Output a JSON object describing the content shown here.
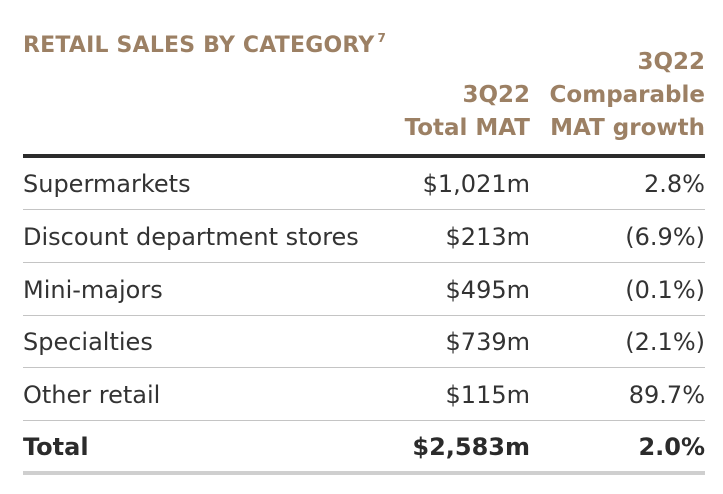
{
  "title": {
    "text": "RETAIL SALES BY CATEGORY",
    "footnote": "7"
  },
  "columns": {
    "total_mat": [
      "3Q22",
      "Total MAT"
    ],
    "growth": [
      "3Q22",
      "Comparable",
      "MAT growth"
    ]
  },
  "rows": [
    {
      "category": "Supermarkets",
      "total_mat": "$1,021m",
      "growth": "2.8%"
    },
    {
      "category": "Discount department stores",
      "total_mat": "$213m",
      "growth": "(6.9%)"
    },
    {
      "category": "Mini-majors",
      "total_mat": "$495m",
      "growth": "(0.1%)"
    },
    {
      "category": "Specialties",
      "total_mat": "$739m",
      "growth": "(2.1%)"
    },
    {
      "category": "Other retail",
      "total_mat": "$115m",
      "growth": "89.7%"
    }
  ],
  "total": {
    "category": "Total",
    "total_mat": "$2,583m",
    "growth": "2.0%"
  },
  "colors": {
    "heading": "#9c8064",
    "text": "#333333",
    "rule": "#2b2b2b"
  }
}
